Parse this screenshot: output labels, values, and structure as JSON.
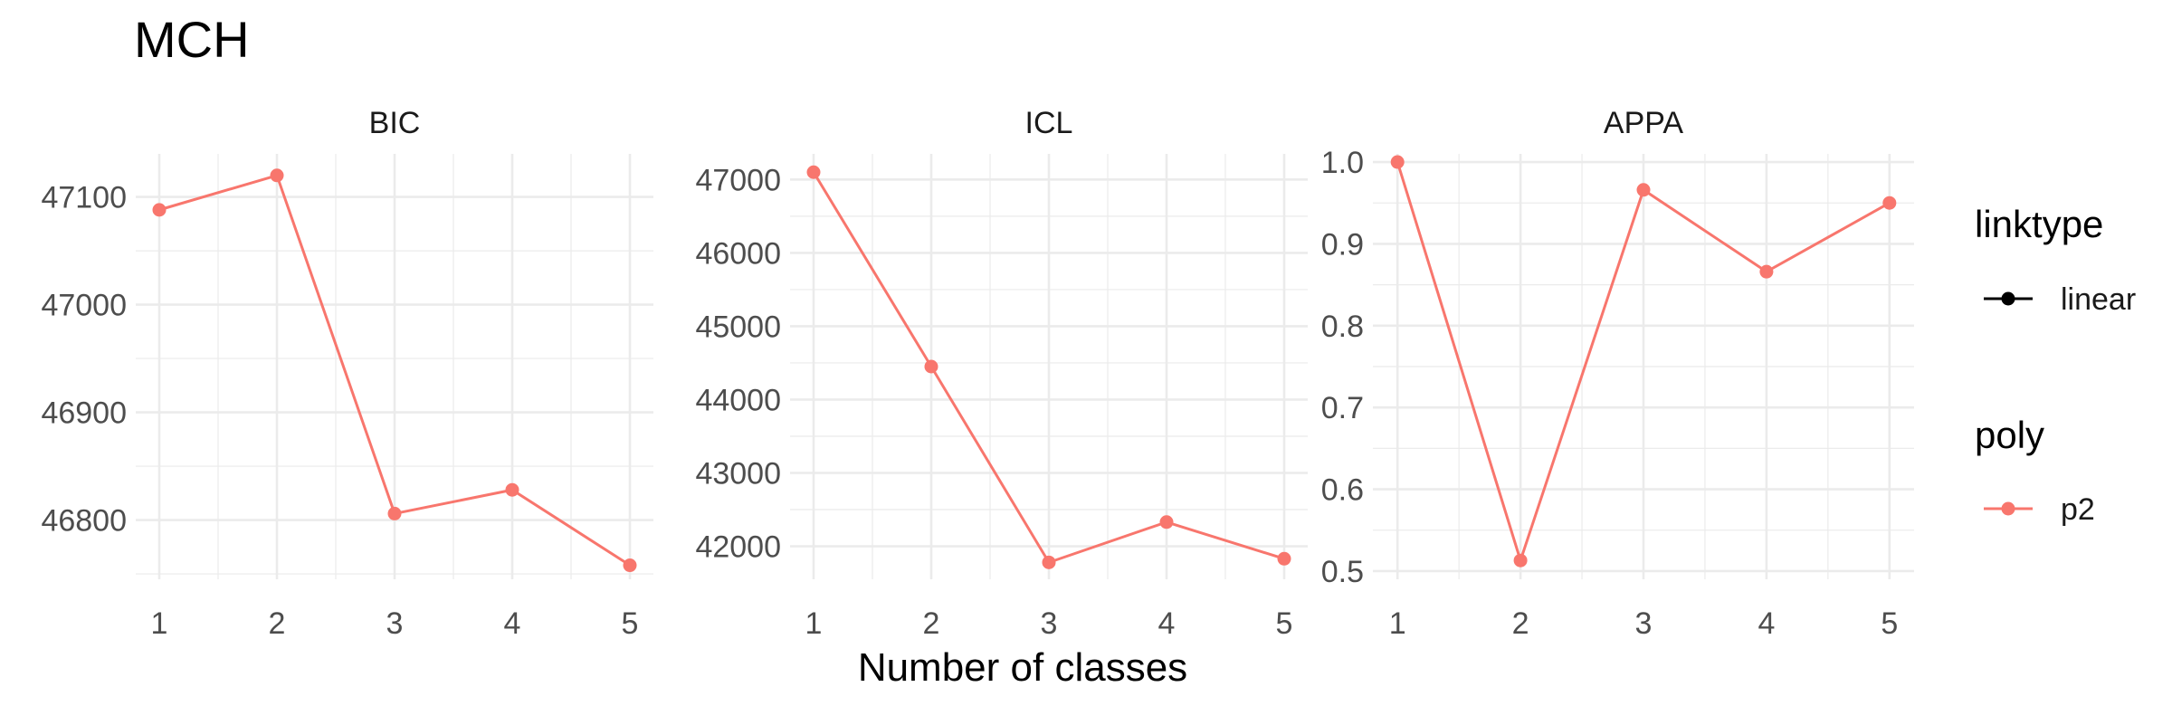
{
  "title": "MCH",
  "xlabel": "Number of classes",
  "colors": {
    "series": "#F8766D",
    "grid": "#EBEBEB",
    "legend_line": "#000000"
  },
  "legend": {
    "placement": "right",
    "groups": [
      {
        "title": "linktype",
        "items": [
          {
            "label": "linear",
            "color": "#000000"
          }
        ]
      },
      {
        "title": "poly",
        "items": [
          {
            "label": "p2",
            "color": "#F8766D"
          }
        ]
      }
    ]
  },
  "chart_data": [
    {
      "type": "line",
      "facet": "BIC",
      "x": [
        1,
        2,
        3,
        4,
        5
      ],
      "series": [
        {
          "name": "p2",
          "values": [
            47088,
            47120,
            46806,
            46828,
            46758
          ]
        }
      ],
      "xlim": [
        0.8,
        5.2
      ],
      "ylim": [
        46745,
        47140
      ],
      "yticks": [
        46800,
        46900,
        47000,
        47100
      ],
      "xticks": [
        1,
        2,
        3,
        4,
        5
      ],
      "grid": true
    },
    {
      "type": "line",
      "facet": "ICL",
      "x": [
        1,
        2,
        3,
        4,
        5
      ],
      "series": [
        {
          "name": "p2",
          "values": [
            47100,
            44450,
            41780,
            42330,
            41830
          ]
        }
      ],
      "xlim": [
        0.8,
        5.2
      ],
      "ylim": [
        41550,
        47350
      ],
      "yticks": [
        42000,
        43000,
        44000,
        45000,
        46000,
        47000
      ],
      "xticks": [
        1,
        2,
        3,
        4,
        5
      ],
      "grid": true
    },
    {
      "type": "line",
      "facet": "APPA",
      "x": [
        1,
        2,
        3,
        4,
        5
      ],
      "series": [
        {
          "name": "p2",
          "values": [
            1.0,
            0.513,
            0.966,
            0.866,
            0.95
          ]
        }
      ],
      "xlim": [
        0.8,
        5.2
      ],
      "ylim": [
        0.49,
        1.01
      ],
      "yticks": [
        0.5,
        0.6,
        0.7,
        0.8,
        0.9,
        1.0
      ],
      "yticklabels": [
        "0.5",
        "0.6",
        "0.7",
        "0.8",
        "0.9",
        "1.0"
      ],
      "xticks": [
        1,
        2,
        3,
        4,
        5
      ],
      "grid": true
    }
  ]
}
